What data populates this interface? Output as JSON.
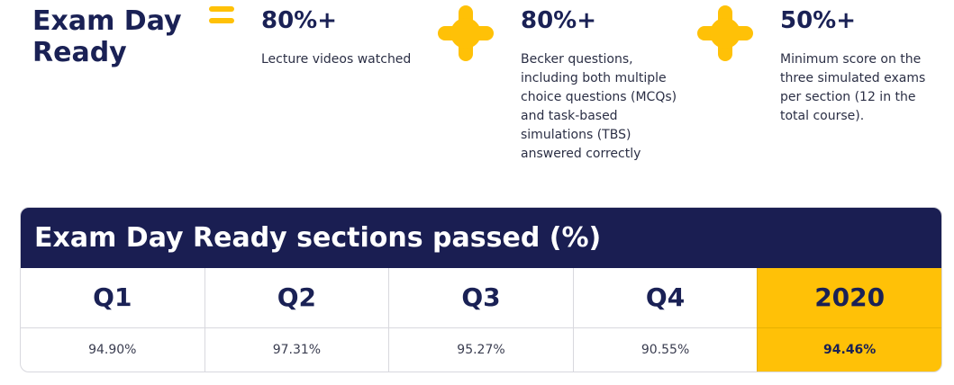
{
  "heading": {
    "line1": "Exam Day",
    "line2": "Ready"
  },
  "criteria": [
    {
      "value": "80%+",
      "description": "Lecture videos watched"
    },
    {
      "value": "80%+",
      "description": "Becker questions, including both multiple choice questions (MCQs) and task-based simulations (TBS) answered correctly"
    },
    {
      "value": "50%+",
      "description": "Minimum score on the three simulated exams per section (12 in the total course)."
    }
  ],
  "icons": {
    "equals": "equals-icon",
    "plus": "plus-icon"
  },
  "colors": {
    "navy": "#1a1e52",
    "yellow": "#ffc107"
  },
  "table": {
    "title": "Exam Day Ready sections passed (%)",
    "columns": [
      {
        "label": "Q1",
        "value": "94.90%"
      },
      {
        "label": "Q2",
        "value": "97.31%"
      },
      {
        "label": "Q3",
        "value": "95.27%"
      },
      {
        "label": "Q4",
        "value": "90.55%"
      },
      {
        "label": "2020",
        "value": "94.46%"
      }
    ]
  }
}
